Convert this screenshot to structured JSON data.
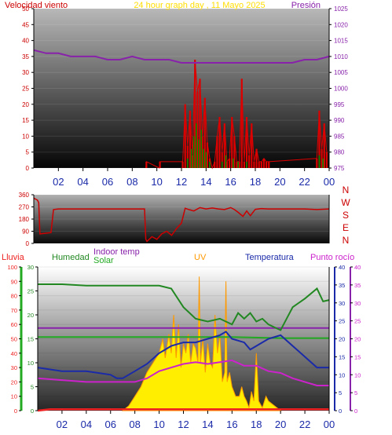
{
  "header": {
    "left_title": "Velocidad viento",
    "center_title": "24 hour graph day , 11 Mayo 2025",
    "right_title": "Presión"
  },
  "colors": {
    "wind": "#dd0000",
    "gust_green": "#008800",
    "pressure": "#8822aa",
    "direction": "#cc0000",
    "humidity": "#228822",
    "solar_indoor": "#22aa22",
    "uv": "#ffee00",
    "uv_edge": "#ff9900",
    "temperature": "#1a2aa8",
    "dew_point": "#cc22cc",
    "rain": "#ee2222"
  },
  "x_ticks": [
    "02",
    "04",
    "06",
    "08",
    "10",
    "12",
    "14",
    "16",
    "18",
    "20",
    "22",
    "00"
  ],
  "chart_data": [
    {
      "type": "line",
      "name": "wind_pressure",
      "title": "24 hour graph day , 11 Mayo 2025",
      "x": "hour of day (0–24)",
      "left_axis": {
        "label": "Velocidad viento",
        "ticks": [
          "0",
          "5",
          "10",
          "15",
          "20",
          "25",
          "30",
          "35",
          "40",
          "45",
          "50"
        ],
        "ylim": [
          0,
          50
        ]
      },
      "right_axis": {
        "label": "Presión",
        "ticks": [
          "975",
          "980",
          "985",
          "990",
          "995",
          "1000",
          "1005",
          "1010",
          "1015",
          "1020",
          "1025"
        ],
        "ylim": [
          975,
          1025
        ]
      },
      "series": [
        {
          "name": "Presión",
          "axis": "right",
          "x": [
            0,
            1,
            2,
            3,
            4,
            5,
            6,
            7,
            8,
            9,
            10,
            11,
            12,
            13,
            14,
            15,
            16,
            17,
            18,
            19,
            20,
            21,
            22,
            23,
            24
          ],
          "values": [
            1012,
            1011,
            1011,
            1010,
            1010,
            1010,
            1009,
            1009,
            1010,
            1009,
            1009,
            1009,
            1008,
            1008,
            1008,
            1008,
            1008,
            1008,
            1008,
            1008,
            1008,
            1008,
            1009,
            1009,
            1010
          ]
        },
        {
          "name": "wind_gust",
          "axis": "left",
          "x": [
            9.1,
            9.15,
            10.2,
            10.25,
            12.1,
            12.3,
            12.5,
            12.7,
            12.9,
            13.1,
            13.3,
            13.5,
            13.7,
            13.9,
            14.1,
            14.3,
            14.5,
            14.7,
            14.9,
            15.1,
            15.3,
            15.5,
            15.7,
            15.9,
            16.1,
            16.3,
            16.5,
            16.7,
            16.9,
            17.1,
            17.3,
            17.5,
            17.7,
            17.9,
            18.1,
            18.3,
            18.5,
            18.7,
            18.9,
            19.1,
            23.0,
            23.2,
            23.4,
            23.6,
            23.8
          ],
          "values": [
            0,
            2,
            0,
            2,
            2,
            20,
            7,
            18,
            4,
            34,
            24,
            28,
            10,
            22,
            8,
            3,
            0,
            2,
            10,
            16,
            5,
            14,
            2,
            3,
            16,
            10,
            2,
            2,
            28,
            2,
            16,
            4,
            14,
            2,
            6,
            2,
            2,
            3,
            2,
            2,
            3,
            18,
            6,
            14,
            5
          ]
        },
        {
          "name": "wind_avg",
          "axis": "left",
          "x": [
            12.5,
            12.8,
            13.0,
            13.2,
            13.4,
            13.6,
            13.8,
            14.0,
            14.3,
            15.3,
            15.6,
            16.2,
            16.6,
            17.3,
            23.2,
            23.5
          ],
          "values": [
            3,
            6,
            10,
            14,
            9,
            12,
            6,
            5,
            2,
            2,
            4,
            3,
            2,
            2,
            4,
            3
          ]
        }
      ]
    },
    {
      "type": "line",
      "name": "wind_direction",
      "left_axis": {
        "ticks": [
          "360",
          "270",
          "180",
          "90",
          "0"
        ],
        "ylim": [
          0,
          360
        ]
      },
      "right_axis": {
        "ticks": [
          "N",
          "W",
          "S",
          "E",
          "N"
        ]
      },
      "series": [
        {
          "name": "direction",
          "x": [
            0,
            0.3,
            0.4,
            0.5,
            1.4,
            1.6,
            2.0,
            3.0,
            4.0,
            5.0,
            6.0,
            7.0,
            8.0,
            9.0,
            9.1,
            9.2,
            9.6,
            10.0,
            10.4,
            10.8,
            11.2,
            11.6,
            12.0,
            12.3,
            12.6,
            13.0,
            13.5,
            14.0,
            14.5,
            15.0,
            15.5,
            16.0,
            16.3,
            16.6,
            17.0,
            17.3,
            17.6,
            18.0,
            18.5,
            19.0,
            20.0,
            21.0,
            22.0,
            23.0,
            24.0
          ],
          "values": [
            335,
            320,
            300,
            70,
            80,
            250,
            255,
            255,
            255,
            255,
            255,
            255,
            255,
            255,
            30,
            15,
            50,
            30,
            70,
            90,
            60,
            110,
            150,
            260,
            250,
            240,
            265,
            255,
            262,
            255,
            250,
            265,
            250,
            230,
            200,
            240,
            205,
            252,
            258,
            255,
            255,
            255,
            255,
            250,
            255
          ]
        }
      ]
    },
    {
      "type": "line",
      "name": "climate",
      "legend": [
        "Lluvia",
        "Humedad",
        "Indoor temp",
        "Solar",
        "UV",
        "Temperatura",
        "Punto rocío"
      ],
      "axes": {
        "lluvia": {
          "ticks": [
            "0",
            "10",
            "20",
            "30",
            "40",
            "50",
            "60",
            "70",
            "80",
            "90",
            "100"
          ],
          "ylim": [
            0,
            100
          ]
        },
        "humedad": {
          "ticks": [
            "0",
            "5",
            "10",
            "15",
            "20",
            "25",
            "30"
          ],
          "ylim": [
            0,
            30
          ]
        },
        "temperatura": {
          "ticks": [
            "0",
            "5",
            "10",
            "15",
            "20",
            "25",
            "30",
            "35",
            "40"
          ],
          "ylim": [
            0,
            40
          ]
        },
        "punto_rocio": {
          "ticks": [
            "0",
            "5",
            "10",
            "15",
            "20",
            "25",
            "30",
            "35",
            "40"
          ],
          "ylim": [
            0,
            40
          ]
        }
      },
      "series": [
        {
          "name": "Humedad",
          "axis": "lluvia",
          "x": [
            0,
            2,
            4,
            6,
            8,
            10,
            11,
            12,
            13,
            14,
            15,
            16,
            16.5,
            17,
            17.5,
            18,
            18.5,
            19,
            19.5,
            20,
            21,
            22,
            23,
            23.5,
            24
          ],
          "values": [
            88,
            88,
            87,
            87,
            87,
            87,
            85,
            72,
            64,
            62,
            64,
            60,
            68,
            64,
            68,
            62,
            64,
            60,
            58,
            56,
            72,
            78,
            85,
            76,
            77
          ]
        },
        {
          "name": "Indoor temp",
          "axis": "temperatura",
          "x": [
            0,
            4,
            8,
            12,
            16,
            20,
            24
          ],
          "values": [
            23,
            23,
            23,
            23,
            23,
            23,
            23
          ]
        },
        {
          "name": "Solar",
          "axis": "temperatura",
          "x": [
            0,
            4,
            8,
            12,
            16,
            20,
            24
          ],
          "values": [
            20.5,
            20.5,
            20.5,
            20.5,
            20.5,
            20.2,
            20.2
          ]
        },
        {
          "name": "Temperatura",
          "axis": "temperatura",
          "x": [
            0,
            2,
            4,
            6,
            6.5,
            7,
            8,
            9,
            10,
            11,
            12,
            13,
            14,
            15,
            15.5,
            16,
            17,
            17.5,
            18,
            19,
            20,
            21,
            22,
            23,
            24
          ],
          "values": [
            12,
            11,
            11,
            10,
            9,
            9,
            11,
            13,
            16,
            18,
            19,
            19,
            20,
            21,
            22,
            20,
            19,
            17,
            18,
            20,
            21,
            18,
            15,
            12,
            12
          ]
        },
        {
          "name": "Punto rocío",
          "axis": "punto_rocio",
          "x": [
            0,
            2,
            4,
            6,
            8,
            9,
            10,
            11,
            12,
            13,
            14,
            15,
            16,
            17,
            18,
            19,
            20,
            21,
            22,
            23,
            24
          ],
          "values": [
            9,
            8.5,
            8,
            8,
            8,
            9,
            11,
            12,
            13,
            13.5,
            13,
            13.5,
            14,
            12.5,
            12.5,
            11,
            10.5,
            9,
            8,
            7,
            7
          ]
        },
        {
          "name": "UV",
          "axis": "humedad",
          "type": "area",
          "x": [
            7.0,
            7.5,
            8.0,
            8.5,
            9.0,
            9.5,
            10.0,
            10.3,
            10.5,
            10.8,
            11.0,
            11.2,
            11.4,
            11.6,
            11.8,
            12.0,
            12.2,
            12.4,
            12.6,
            12.8,
            13.0,
            13.2,
            13.3,
            13.4,
            13.6,
            13.8,
            14.0,
            14.2,
            14.4,
            14.6,
            14.8,
            15.0,
            15.2,
            15.4,
            15.5,
            15.6,
            15.8,
            16.0,
            16.3,
            16.6,
            16.8,
            17.0,
            17.2,
            17.4,
            17.6,
            17.8,
            18.0,
            18.2,
            18.5,
            18.8,
            19.0,
            19.5,
            20.0
          ],
          "values": [
            0,
            1,
            3,
            5,
            8,
            10,
            12,
            15,
            11,
            16,
            12,
            20,
            11,
            18,
            9,
            14,
            12,
            16,
            10,
            14,
            13,
            10,
            28,
            10,
            15,
            8,
            14,
            10,
            9,
            20,
            12,
            16,
            6,
            8,
            27,
            6,
            8,
            5,
            3,
            3,
            5,
            3,
            2,
            0.6,
            4,
            2,
            12,
            2,
            0.6,
            3,
            2,
            1,
            0
          ]
        },
        {
          "name": "Lluvia",
          "axis": "lluvia",
          "x": [
            0,
            1,
            24
          ],
          "values": [
            0,
            1,
            1
          ]
        }
      ]
    }
  ]
}
